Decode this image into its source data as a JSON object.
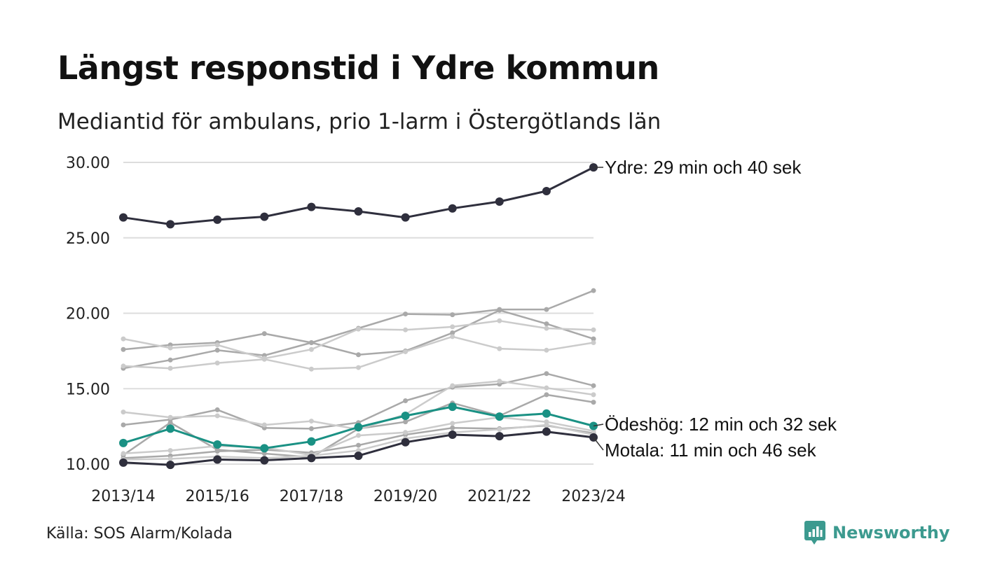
{
  "title": "Längst responstid i Ydre kommun",
  "subtitle": "Mediantid för ambulans, prio 1-larm i Östergötlands län",
  "source": "Källa: SOS Alarm/Kolada",
  "brand": {
    "name": "Newsworthy",
    "icon": "newsworthy-logo-icon",
    "color": "#3c9a8f"
  },
  "chart_data": {
    "type": "line",
    "title": "Längst responstid i Ydre kommun",
    "subtitle": "Mediantid för ambulans, prio 1-larm i Östergötlands län",
    "xlabel": "",
    "ylabel": "",
    "ylim": [
      10,
      30
    ],
    "y_ticks": [
      "30.00",
      "25.00",
      "20.00",
      "15.00",
      "10.00"
    ],
    "y_tick_values": [
      30,
      25,
      20,
      15,
      10
    ],
    "x": [
      "2013/14",
      "2014/15",
      "2015/16",
      "2016/17",
      "2017/18",
      "2018/19",
      "2019/20",
      "2020/21",
      "2021/22",
      "2022/23",
      "2023/24"
    ],
    "x_tick_labels": [
      "2013/14",
      "2015/16",
      "2017/18",
      "2019/20",
      "2021/22",
      "2023/24"
    ],
    "grid": true,
    "legend": "none",
    "colors": {
      "highlight_dark": "#2f2f3d",
      "highlight_teal": "#1a9184",
      "background_series": [
        "#a9a9a9",
        "#bdbdbd",
        "#cccccc"
      ]
    },
    "series": [
      {
        "name": "Ydre",
        "style": "dark",
        "label": "Ydre: 29 min och 40 sek",
        "values": [
          26.35,
          25.9,
          26.2,
          26.4,
          27.05,
          26.75,
          26.35,
          26.95,
          27.4,
          28.1,
          29.67
        ]
      },
      {
        "name": "Ödeshög",
        "style": "teal",
        "label": "Ödeshög: 12 min och 32 sek",
        "values": [
          11.4,
          12.35,
          11.3,
          11.05,
          11.5,
          12.45,
          13.2,
          13.8,
          13.15,
          13.35,
          12.53
        ]
      },
      {
        "name": "Motala",
        "style": "dark",
        "label": "Motala: 11 min och 46 sek",
        "values": [
          10.1,
          9.95,
          10.3,
          10.25,
          10.4,
          10.55,
          11.45,
          11.95,
          11.85,
          12.15,
          11.77
        ]
      },
      {
        "values": [
          17.6,
          17.9,
          18.05,
          18.65,
          18.05,
          17.25,
          17.5,
          18.7,
          20.2,
          19.3,
          18.3
        ],
        "style": "gray"
      },
      {
        "values": [
          16.35,
          16.9,
          17.55,
          17.2,
          18.05,
          19.0,
          19.95,
          19.9,
          20.25,
          20.25,
          21.5
        ],
        "style": "gray"
      },
      {
        "values": [
          18.3,
          17.7,
          17.9,
          17.0,
          17.6,
          18.95,
          18.9,
          19.1,
          19.5,
          19.0,
          18.9
        ],
        "style": "light"
      },
      {
        "values": [
          16.5,
          16.35,
          16.7,
          16.95,
          16.3,
          16.4,
          17.45,
          18.45,
          17.65,
          17.55,
          18.05
        ],
        "style": "light"
      },
      {
        "values": [
          12.6,
          12.95,
          13.6,
          12.4,
          12.35,
          12.75,
          14.2,
          15.1,
          15.3,
          16.0,
          15.2
        ],
        "style": "gray"
      },
      {
        "values": [
          10.6,
          12.75,
          10.95,
          10.7,
          10.45,
          12.35,
          12.8,
          14.05,
          13.2,
          14.6,
          14.1
        ],
        "style": "gray"
      },
      {
        "values": [
          13.45,
          13.1,
          13.2,
          12.6,
          12.85,
          12.3,
          13.3,
          15.2,
          15.5,
          15.05,
          14.6
        ],
        "style": "light"
      },
      {
        "values": [
          10.4,
          10.55,
          10.85,
          10.95,
          10.75,
          11.25,
          11.95,
          12.4,
          12.35,
          12.55,
          12.05
        ],
        "style": "gray"
      },
      {
        "values": [
          10.7,
          10.9,
          11.2,
          11.1,
          10.6,
          11.9,
          12.1,
          12.7,
          13.1,
          12.8,
          12.2
        ],
        "style": "light"
      },
      {
        "values": [
          10.3,
          10.35,
          10.5,
          10.4,
          10.55,
          10.9,
          11.7,
          12.1,
          12.3,
          12.6,
          11.95
        ],
        "style": "light"
      }
    ]
  }
}
